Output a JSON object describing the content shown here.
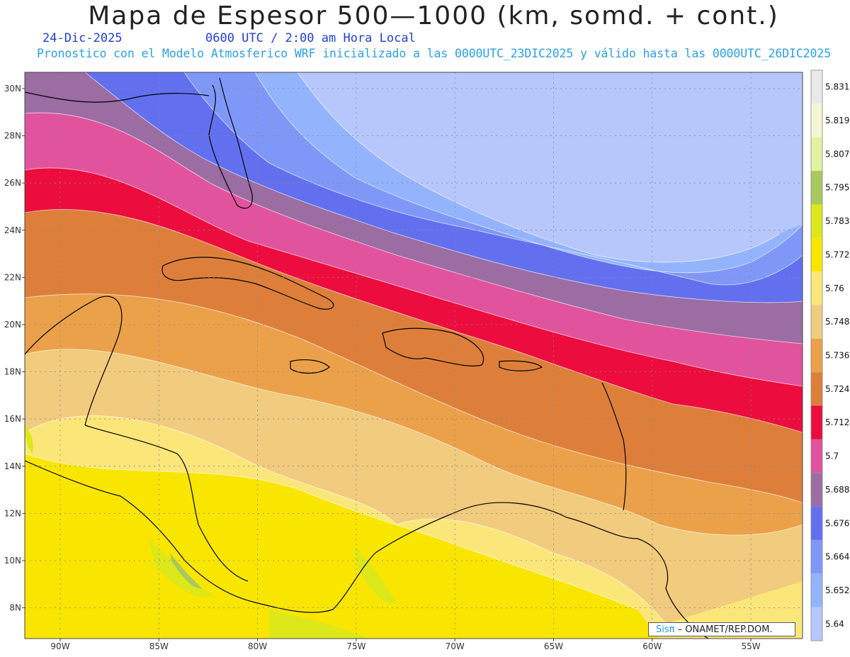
{
  "header": {
    "title": "Mapa de Espesor 500—1000 (km, somd. + cont.)",
    "date": "24-Dic-2025",
    "time": "0600 UTC / 2:00 am Hora Local",
    "description": "Pronostico con el Modelo Atmosferico WRF inicializado a las 0000UTC_23DIC2025 y válido hasta las  0000UTC_26DIC2025"
  },
  "axes": {
    "lat_labels": [
      "30N",
      "28N",
      "26N",
      "24N",
      "22N",
      "20N",
      "18N",
      "16N",
      "14N",
      "12N",
      "10N",
      "8N"
    ],
    "lon_labels": [
      "90W",
      "85W",
      "80W",
      "75W",
      "70W",
      "65W",
      "60W",
      "55W"
    ]
  },
  "colorbar": {
    "labels": [
      "5.831",
      "5.819",
      "5.807",
      "5.795",
      "5.783",
      "5.772",
      "5.76",
      "5.748",
      "5.736",
      "5.724",
      "5.712",
      "5.7",
      "5.688",
      "5.676",
      "5.664",
      "5.652",
      "5.64"
    ],
    "colors": [
      "#e9e9e9",
      "#f3f6d2",
      "#e2f2a0",
      "#a9c85e",
      "#dde81a",
      "#f8e600",
      "#fbe67a",
      "#f1cb7e",
      "#eba14a",
      "#dd7f3b",
      "#ec0c3d",
      "#e2539e",
      "#9b6da3",
      "#6270f0",
      "#7f98f8",
      "#93b4fd",
      "#b7c7fc"
    ]
  },
  "credit": {
    "brand": "Sisπ",
    "text": "– ONAMET/REP.DOM."
  }
}
